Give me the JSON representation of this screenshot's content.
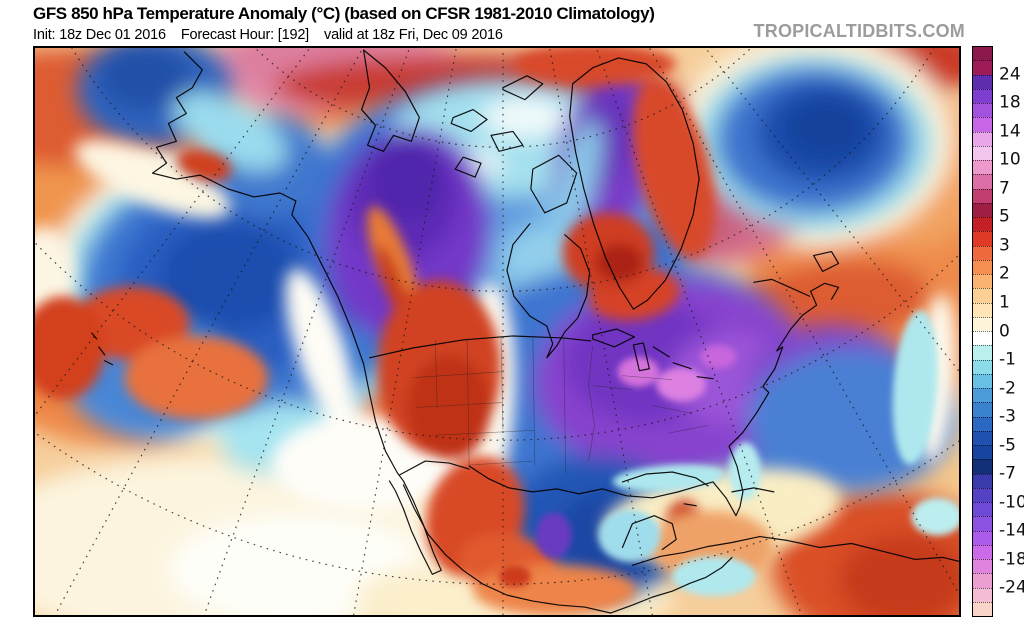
{
  "header": {
    "title": "GFS 850 hPa Temperature Anomaly (°C) (based on CFSR 1981-2010 Climatology)",
    "init_label": "Init: 18z Dec 01 2016",
    "forecast_label": "Forecast Hour: [192]",
    "valid_label": "valid at 18z Fri, Dec 09 2016",
    "watermark": "TROPICALTIDBITS.COM"
  },
  "colorbar": {
    "tick_labels": [
      "24",
      "18",
      "14",
      "10",
      "7",
      "5",
      "3",
      "2",
      "1",
      "0",
      "-1",
      "-2",
      "-3",
      "-5",
      "-7",
      "-10",
      "-14",
      "-18",
      "-24"
    ],
    "segment_colors": [
      "#8B194B",
      "#9D1C58",
      "#5F2EB0",
      "#7E3FD0",
      "#A352E0",
      "#C866E8",
      "#E9A6E8",
      "#F3C6EF",
      "#EE99CE",
      "#DB6FA6",
      "#C23E70",
      "#9E1E44",
      "#C42027",
      "#DE3A25",
      "#EF6A3C",
      "#F68E52",
      "#FAB271",
      "#FCD094",
      "#FDE5B5",
      "#FEF4D9",
      "#FFFFFF",
      "#BCF0EE",
      "#8CDDE9",
      "#68C0E5",
      "#4C9CDA",
      "#3A82CE",
      "#2B68C2",
      "#1F52B0",
      "#17449E",
      "#122F78",
      "#3B3AAC",
      "#5343C4",
      "#6E49D6",
      "#8C52E2",
      "#AC5CEA",
      "#CC6AEA",
      "#DE84DE",
      "#EC9ED2",
      "#F5BCD6",
      "#F9D5C9"
    ]
  }
}
